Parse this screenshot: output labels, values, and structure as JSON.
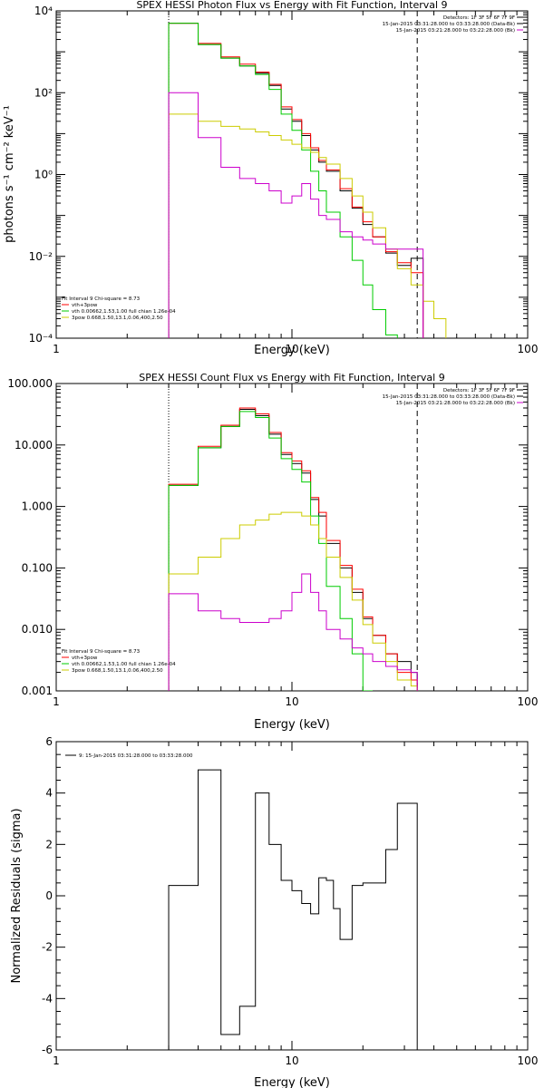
{
  "chart_data": [
    {
      "type": "line",
      "title": "SPEX HESSI Photon Flux vs Energy with Fit Function, Interval 9",
      "xlabel": "Energy (keV)",
      "ylabel": "photons s⁻¹ cm⁻² keV⁻¹",
      "xscale": "log",
      "yscale": "log",
      "xlim": [
        1,
        100
      ],
      "ylim": [
        0.0001,
        10000
      ],
      "x_tick_labels": [
        "1",
        "10",
        "100"
      ],
      "y_tick_labels": [
        "10⁻⁴",
        "10⁻²",
        "10⁰",
        "10²",
        "10⁴"
      ],
      "y_ticks": [
        0.0001,
        0.01,
        1,
        100,
        10000
      ],
      "legend_top_right": [
        "Detectors: 1F 3F 5F 6F 7F 9F",
        "15-Jan-2015 03:31:28.000 to 03:33:28.000 (Data-Bk)",
        "15-Jan-2015 03:21:28.000 to 03:22:28.000 (Bk)"
      ],
      "legend_top_colors": [
        "#000000",
        "#000000",
        "#cc00cc"
      ],
      "legend_bottom_left": [
        "Fit Interval 9   Chi-square = 8.73",
        "vth+3pow",
        "vth 0.00662,1.53,1.00  full chian 1.26e-04",
        "3pow 0.668,1.50,13.1,0.06,400,2.50"
      ],
      "legend_bottom_colors": [
        "",
        "#ff0000",
        "#00cc00",
        "#cccc00"
      ],
      "edges": [
        3,
        3.5,
        4,
        5,
        6,
        7,
        8,
        9,
        10,
        11,
        12,
        13,
        14,
        16,
        18,
        20,
        22,
        25,
        28,
        32,
        36,
        40,
        45
      ],
      "series": [
        {
          "name": "15-Jan-2015 03:31:28.000 to 03:33:28.000 (Data-Bk)",
          "color": "#000000",
          "values": [
            5000,
            5000,
            1500,
            700,
            450,
            300,
            150,
            40,
            20,
            9,
            4,
            2,
            1.2,
            0.4,
            0.15,
            0.06,
            0.03,
            0.012,
            0.006,
            0.009
          ]
        },
        {
          "name": "vth+3pow",
          "color": "#ff0000",
          "values": [
            5000,
            5000,
            1600,
            750,
            500,
            320,
            160,
            45,
            22,
            10,
            4.5,
            2.2,
            1.3,
            0.45,
            0.16,
            0.07,
            0.03,
            0.013,
            0.007,
            0.004
          ]
        },
        {
          "name": "vth",
          "color": "#00cc00",
          "values": [
            5000,
            5000,
            1500,
            700,
            450,
            280,
            120,
            30,
            12,
            4,
            1.2,
            0.4,
            0.12,
            0.03,
            0.008,
            0.002,
            0.0005,
            0.00012
          ]
        },
        {
          "name": "3pow",
          "color": "#cccc00",
          "values": [
            30,
            30,
            20,
            15,
            13,
            11,
            9,
            7,
            5.5,
            4.5,
            3.5,
            2.6,
            1.8,
            0.8,
            0.3,
            0.12,
            0.05,
            0.015,
            0.005,
            0.002,
            0.0008,
            0.0003
          ]
        },
        {
          "name": "15-Jan-2015 03:21:28.000 to 03:22:28.000 (Bk)",
          "color": "#cc00cc",
          "values": [
            100,
            100,
            8,
            1.5,
            0.8,
            0.6,
            0.4,
            0.2,
            0.3,
            0.6,
            0.25,
            0.1,
            0.08,
            0.04,
            0.03,
            0.025,
            0.02,
            0.015,
            0.015,
            0.015
          ]
        }
      ],
      "vlines": [
        {
          "x": 3,
          "style": "dotted",
          "color": "#000000"
        },
        {
          "x": 34,
          "style": "dashed",
          "color": "#000000"
        }
      ]
    },
    {
      "type": "line",
      "title": "SPEX HESSI Count Flux vs Energy with Fit Function, Interval 9",
      "xlabel": "Energy (keV)",
      "ylabel": "",
      "xscale": "log",
      "yscale": "log",
      "xlim": [
        1,
        100
      ],
      "ylim": [
        0.001,
        100
      ],
      "x_tick_labels": [
        "1",
        "10",
        "100"
      ],
      "y_tick_labels": [
        "0.001",
        "0.010",
        "0.100",
        "1.000",
        "10.000",
        "100.000"
      ],
      "y_ticks": [
        0.001,
        0.01,
        0.1,
        1,
        10,
        100
      ],
      "legend_top_right": [
        "Detectors: 1F 3F 5F 6F 7F 9F",
        "15-Jan-2015 03:31:28.000 to 03:33:28.000 (Data-Bk)",
        "15-Jan-2015 03:21:28.000 to 03:22:28.000 (Bk)"
      ],
      "legend_top_colors": [
        "#000000",
        "#000000",
        "#cc00cc"
      ],
      "legend_bottom_left": [
        "Fit Interval 9   Chi-square = 8.73",
        "vth+3pow",
        "vth 0.00662,1.53,1.00  full chian 1.26e-04",
        "3pow 0.668,1.50,13.1,0.06,400,2.50"
      ],
      "legend_bottom_colors": [
        "",
        "#ff0000",
        "#00cc00",
        "#cccc00"
      ],
      "edges": [
        3,
        4,
        5,
        6,
        7,
        8,
        9,
        10,
        11,
        12,
        13,
        14,
        16,
        18,
        20,
        22,
        25,
        28,
        32,
        34
      ],
      "series": [
        {
          "name": "15-Jan-2015 03:31:28.000 to 03:33:28.000 (Data-Bk)",
          "color": "#000000",
          "values": [
            2.2,
            9,
            20,
            38,
            30,
            15,
            7,
            5,
            3.5,
            1.3,
            0.7,
            0.25,
            0.1,
            0.04,
            0.015,
            0.008,
            0.004,
            0.003,
            0.002
          ]
        },
        {
          "name": "vth+3pow",
          "color": "#ff0000",
          "values": [
            2.3,
            9.5,
            21,
            40,
            32,
            16,
            7.5,
            5.5,
            3.8,
            1.4,
            0.8,
            0.28,
            0.11,
            0.045,
            0.016,
            0.008,
            0.004,
            0.002,
            0.0015
          ]
        },
        {
          "name": "vth",
          "color": "#00cc00",
          "values": [
            2.2,
            9,
            20,
            35,
            28,
            13,
            6,
            4,
            2.5,
            0.7,
            0.25,
            0.05,
            0.015,
            0.004,
            0.001
          ]
        },
        {
          "name": "3pow",
          "color": "#cccc00",
          "values": [
            0.08,
            0.15,
            0.3,
            0.5,
            0.6,
            0.75,
            0.8,
            0.8,
            0.7,
            0.5,
            0.3,
            0.15,
            0.07,
            0.03,
            0.012,
            0.006,
            0.003,
            0.0015,
            0.0012
          ]
        },
        {
          "name": "15-Jan-2015 03:21:28.000 to 03:22:28.000 (Bk)",
          "color": "#cc00cc",
          "values": [
            0.038,
            0.02,
            0.015,
            0.013,
            0.013,
            0.015,
            0.02,
            0.04,
            0.08,
            0.04,
            0.02,
            0.01,
            0.007,
            0.005,
            0.004,
            0.003,
            0.0025,
            0.0022,
            0.002
          ]
        }
      ],
      "vlines": [
        {
          "x": 3,
          "style": "dotted",
          "color": "#000000"
        },
        {
          "x": 34,
          "style": "dashed",
          "color": "#000000"
        }
      ]
    },
    {
      "type": "line",
      "title": "",
      "xlabel": "Energy (keV)",
      "ylabel": "Normalized Residuals (sigma)",
      "xscale": "log",
      "yscale": "linear",
      "xlim": [
        1,
        100
      ],
      "ylim": [
        -6,
        6
      ],
      "x_tick_labels": [
        "1",
        "10",
        "100"
      ],
      "y_tick_labels": [
        "-6",
        "-4",
        "-2",
        "0",
        "2",
        "4",
        "6"
      ],
      "y_ticks": [
        -6,
        -4,
        -2,
        0,
        2,
        4,
        6
      ],
      "legend_top_left": [
        "9: 15-Jan-2015 03:31:28.000 to 03:33:28.000"
      ],
      "edges": [
        3,
        3.5,
        4,
        5,
        6,
        7,
        8,
        9,
        10,
        11,
        12,
        13,
        14,
        15,
        16,
        18,
        20,
        22,
        25,
        28,
        31,
        34
      ],
      "series": [
        {
          "name": "9: 15-Jan-2015 03:31:28.000 to 03:33:28.000",
          "color": "#000000",
          "values": [
            0.4,
            0.4,
            4.9,
            -5.4,
            -4.3,
            4.0,
            2.0,
            0.6,
            0.2,
            -0.3,
            -0.7,
            0.7,
            0.6,
            -0.5,
            -1.7,
            0.4,
            0.5,
            0.5,
            1.8,
            3.6,
            3.6
          ]
        }
      ]
    }
  ]
}
